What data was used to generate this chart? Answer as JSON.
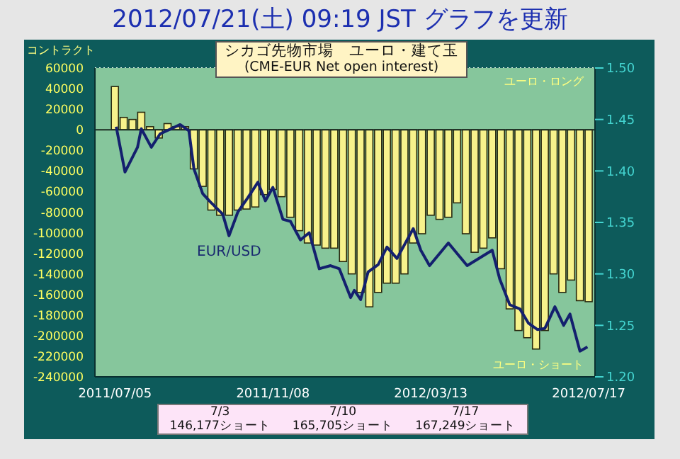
{
  "chart_data": {
    "type": "bar",
    "title": "2012/07/21(土) 09:19 JST グラフを更新",
    "ylabel": "コントラクト",
    "annotations": [
      "シカゴ先物市場　ユーロ・建て玉",
      "(CME-EUR Net open interest)",
      "ユーロ・ロング",
      "ユーロ・ショート",
      "7/3",
      "7/10",
      "7/17",
      "146,177ショート",
      "165,705ショート",
      "167,249ショート"
    ],
    "series": [
      {
        "color": "#f7f28c",
        "x": [
          "2011-07-05",
          "2011-07-12",
          "2011-07-19",
          "2011-07-26",
          "2011-08-02",
          "2011-08-09",
          "2011-08-16",
          "2011-08-23",
          "2011-08-30",
          "2011-09-06",
          "2011-09-13",
          "2011-09-20",
          "2011-09-27",
          "2011-10-04",
          "2011-10-11",
          "2011-10-18",
          "2011-10-25",
          "2011-11-01",
          "2011-11-08",
          "2011-11-15",
          "2011-11-22",
          "2011-11-29",
          "2011-12-06",
          "2011-12-13",
          "2011-12-20",
          "2011-12-27",
          "2012-01-03",
          "2012-01-10",
          "2012-01-17",
          "2012-01-24",
          "2012-01-31",
          "2012-02-07",
          "2012-02-14",
          "2012-02-21",
          "2012-02-28",
          "2012-03-06",
          "2012-03-13",
          "2012-03-20",
          "2012-03-27",
          "2012-04-03",
          "2012-04-10",
          "2012-04-17",
          "2012-04-24",
          "2012-05-01",
          "2012-05-08",
          "2012-05-15",
          "2012-05-22",
          "2012-05-29",
          "2012-06-05",
          "2012-06-12",
          "2012-06-19",
          "2012-06-26",
          "2012-07-03",
          "2012-07-10",
          "2012-07-17"
        ],
        "values": [
          42000,
          12000,
          10000,
          17000,
          3000,
          -8000,
          6000,
          3000,
          3000,
          -38000,
          -55000,
          -78000,
          -83000,
          -83000,
          -78000,
          -77000,
          -75000,
          -63000,
          -58000,
          -65000,
          -85000,
          -98000,
          -110000,
          -112000,
          -115000,
          -115000,
          -128000,
          -140000,
          -158000,
          -172000,
          -158000,
          -149000,
          -149000,
          -140000,
          -110000,
          -101000,
          -83000,
          -87000,
          -85000,
          -71000,
          -101000,
          -119000,
          -115000,
          -105000,
          -135000,
          -174000,
          -195000,
          -202000,
          -213000,
          -195000,
          -140000,
          -158000,
          -146000,
          -166000,
          -167000
        ]
      },
      {
        "type": "line",
        "name": "EUR/USD",
        "color": "#14206e",
        "axis": "y2",
        "x": [
          "2011-07-06",
          "2011-07-13",
          "2011-07-23",
          "2011-07-26",
          "2011-08-03",
          "2011-08-10",
          "2011-08-26",
          "2011-09-02",
          "2011-09-06",
          "2011-09-13",
          "2011-09-19",
          "2011-09-29",
          "2011-10-04",
          "2011-10-11",
          "2011-10-19",
          "2011-10-27",
          "2011-11-02",
          "2011-11-08",
          "2011-11-16",
          "2011-11-22",
          "2011-11-30",
          "2011-12-07",
          "2011-12-15",
          "2011-12-24",
          "2011-12-31",
          "2012-01-09",
          "2012-01-12",
          "2012-01-17",
          "2012-01-23",
          "2012-01-31",
          "2012-02-07",
          "2012-02-15",
          "2012-02-28",
          "2012-03-05",
          "2012-03-12",
          "2012-03-27",
          "2012-04-11",
          "2012-05-01",
          "2012-05-07",
          "2012-05-15",
          "2012-05-23",
          "2012-05-30",
          "2012-06-06",
          "2012-06-12",
          "2012-06-20",
          "2012-06-27",
          "2012-07-02",
          "2012-07-10",
          "2012-07-16"
        ],
        "values": [
          1.443,
          1.399,
          1.423,
          1.441,
          1.423,
          1.436,
          1.445,
          1.439,
          1.402,
          1.378,
          1.37,
          1.358,
          1.337,
          1.36,
          1.374,
          1.389,
          1.371,
          1.384,
          1.353,
          1.351,
          1.333,
          1.34,
          1.305,
          1.308,
          1.305,
          1.277,
          1.284,
          1.275,
          1.302,
          1.309,
          1.326,
          1.315,
          1.344,
          1.323,
          1.308,
          1.33,
          1.308,
          1.323,
          1.295,
          1.27,
          1.266,
          1.252,
          1.246,
          1.247,
          1.268,
          1.25,
          1.261,
          1.225,
          1.229
        ]
      }
    ],
    "xlim": [
      "2011-06-19",
      "2012-07-22"
    ],
    "xticks": [
      {
        "value": "2011-07-05",
        "label": "2011/07/05"
      },
      {
        "value": "2011-11-08",
        "label": "2011/11/08"
      },
      {
        "value": "2012-03-13",
        "label": "2012/03/13"
      },
      {
        "value": "2012-07-17",
        "label": "2012/07/17"
      }
    ],
    "ylim": [
      -240000,
      60000
    ],
    "yticks": [
      -240000,
      -220000,
      -200000,
      -180000,
      -160000,
      -140000,
      -120000,
      -100000,
      -80000,
      -60000,
      -40000,
      -20000,
      0,
      20000,
      40000,
      60000
    ],
    "y2lim": [
      1.2,
      1.5
    ],
    "y2ticks": [
      {
        "value": 1.2,
        "label": "1.20"
      },
      {
        "value": 1.25,
        "label": "1.25"
      },
      {
        "value": 1.3,
        "label": "1.30"
      },
      {
        "value": 1.35,
        "label": "1.35"
      },
      {
        "value": 1.4,
        "label": "1.40"
      },
      {
        "value": 1.45,
        "label": "1.45"
      },
      {
        "value": 1.5,
        "label": "1.50"
      }
    ],
    "grid": true,
    "legend": false
  }
}
